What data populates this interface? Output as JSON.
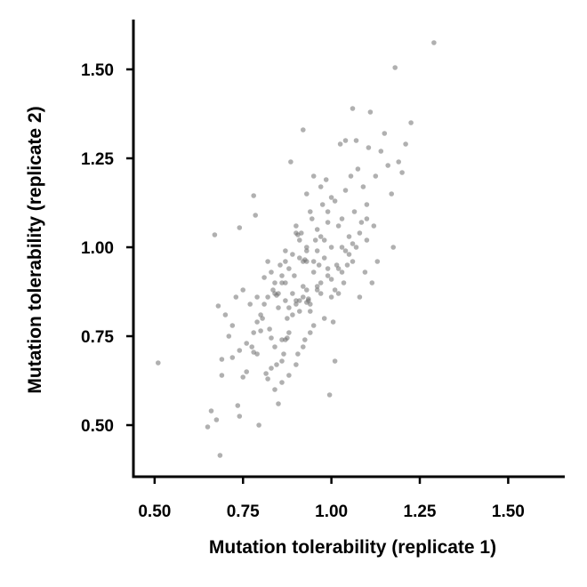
{
  "chart_data": {
    "type": "scatter",
    "title": "",
    "xlabel": "Mutation tolerability (replicate 1)",
    "ylabel": "Mutation tolerability (replicate 2)",
    "xlim": [
      0.44,
      1.66
    ],
    "ylim": [
      0.355,
      1.64
    ],
    "xticks": [
      0.5,
      0.75,
      1.0,
      1.25,
      1.5
    ],
    "xtick_labels": [
      "0.50",
      "0.75",
      "1.00",
      "1.25",
      "1.50"
    ],
    "yticks": [
      0.5,
      0.75,
      1.0,
      1.25,
      1.5
    ],
    "ytick_labels": [
      "0.50",
      "0.75",
      "1.00",
      "1.25",
      "1.50"
    ],
    "grid": false,
    "marker_color": "#6f6f6f",
    "points": [
      [
        0.51,
        0.675
      ],
      [
        0.65,
        0.495
      ],
      [
        0.66,
        0.54
      ],
      [
        0.675,
        0.515
      ],
      [
        0.67,
        1.035
      ],
      [
        0.68,
        0.835
      ],
      [
        0.685,
        0.415
      ],
      [
        0.69,
        0.64
      ],
      [
        0.69,
        0.685
      ],
      [
        0.7,
        0.81
      ],
      [
        0.71,
        0.75
      ],
      [
        0.72,
        0.78
      ],
      [
        0.73,
        0.86
      ],
      [
        0.735,
        0.555
      ],
      [
        0.74,
        0.525
      ],
      [
        0.74,
        1.055
      ],
      [
        0.75,
        0.635
      ],
      [
        0.75,
        0.88
      ],
      [
        0.76,
        0.65
      ],
      [
        0.77,
        0.84
      ],
      [
        0.775,
        0.72
      ],
      [
        0.78,
        1.145
      ],
      [
        0.78,
        0.705
      ],
      [
        0.785,
        1.09
      ],
      [
        0.79,
        0.7
      ],
      [
        0.795,
        0.5
      ],
      [
        0.79,
        0.86
      ],
      [
        0.8,
        0.765
      ],
      [
        0.805,
        0.8
      ],
      [
        0.81,
        0.915
      ],
      [
        0.815,
        0.645
      ],
      [
        0.82,
        0.86
      ],
      [
        0.82,
        0.63
      ],
      [
        0.825,
        0.77
      ],
      [
        0.83,
        0.745
      ],
      [
        0.835,
        0.88
      ],
      [
        0.84,
        0.9
      ],
      [
        0.84,
        0.72
      ],
      [
        0.845,
        0.67
      ],
      [
        0.85,
        0.56
      ],
      [
        0.85,
        0.83
      ],
      [
        0.855,
        0.95
      ],
      [
        0.86,
        0.74
      ],
      [
        0.86,
        0.68
      ],
      [
        0.865,
        0.7
      ],
      [
        0.87,
        0.9
      ],
      [
        0.87,
        0.99
      ],
      [
        0.875,
        0.8
      ],
      [
        0.88,
        0.76
      ],
      [
        0.88,
        0.94
      ],
      [
        0.885,
        1.24
      ],
      [
        0.89,
        0.87
      ],
      [
        0.895,
        0.92
      ],
      [
        0.9,
        1.06
      ],
      [
        0.9,
        0.85
      ],
      [
        0.905,
        0.7
      ],
      [
        0.91,
        0.97
      ],
      [
        0.91,
        0.82
      ],
      [
        0.915,
        1.04
      ],
      [
        0.92,
        0.89
      ],
      [
        0.92,
        1.33
      ],
      [
        0.925,
        0.74
      ],
      [
        0.93,
        0.96
      ],
      [
        0.93,
        0.99
      ],
      [
        0.935,
        0.85
      ],
      [
        0.94,
        1.1
      ],
      [
        0.94,
        0.82
      ],
      [
        0.945,
        1.08
      ],
      [
        0.95,
        0.93
      ],
      [
        0.95,
        0.78
      ],
      [
        0.955,
        1.02
      ],
      [
        0.96,
        0.89
      ],
      [
        0.96,
        1.05
      ],
      [
        0.965,
        0.95
      ],
      [
        0.97,
        1.03
      ],
      [
        0.97,
        0.87
      ],
      [
        0.975,
        1.12
      ],
      [
        0.98,
        0.97
      ],
      [
        0.98,
        0.8
      ],
      [
        0.985,
        1.19
      ],
      [
        0.99,
        0.94
      ],
      [
        0.99,
        1.07
      ],
      [
        0.995,
        0.585
      ],
      [
        1.0,
        0.91
      ],
      [
        1.0,
        1.0
      ],
      [
        1.005,
        0.79
      ],
      [
        1.01,
        1.13
      ],
      [
        1.01,
        0.68
      ],
      [
        1.015,
        0.95
      ],
      [
        1.02,
        1.06
      ],
      [
        1.02,
        0.87
      ],
      [
        1.025,
        1.29
      ],
      [
        1.03,
        1.0
      ],
      [
        1.03,
        1.08
      ],
      [
        1.035,
        0.9
      ],
      [
        1.04,
        1.3
      ],
      [
        1.04,
        1.16
      ],
      [
        1.045,
        0.95
      ],
      [
        1.05,
        1.03
      ],
      [
        1.055,
        1.2
      ],
      [
        1.06,
        1.39
      ],
      [
        1.06,
        0.96
      ],
      [
        1.065,
        1.1
      ],
      [
        1.07,
        1.0
      ],
      [
        1.07,
        1.3
      ],
      [
        1.075,
        1.22
      ],
      [
        1.08,
        0.86
      ],
      [
        1.085,
        1.07
      ],
      [
        1.09,
        1.17
      ],
      [
        1.095,
        0.93
      ],
      [
        1.1,
        1.12
      ],
      [
        1.1,
        1.02
      ],
      [
        1.105,
        1.28
      ],
      [
        1.11,
        1.38
      ],
      [
        1.115,
        0.9
      ],
      [
        1.12,
        1.06
      ],
      [
        1.125,
        1.2
      ],
      [
        1.13,
        0.96
      ],
      [
        1.14,
        1.27
      ],
      [
        1.15,
        1.32
      ],
      [
        1.16,
        1.23
      ],
      [
        1.17,
        1.15
      ],
      [
        1.175,
        1.0
      ],
      [
        1.18,
        1.505
      ],
      [
        1.19,
        1.24
      ],
      [
        1.2,
        1.21
      ],
      [
        1.21,
        1.29
      ],
      [
        1.225,
        1.35
      ],
      [
        1.29,
        1.575
      ],
      [
        0.87,
        0.85
      ],
      [
        0.9,
        0.84
      ],
      [
        0.91,
        0.85
      ],
      [
        0.92,
        0.86
      ],
      [
        0.93,
        0.88
      ],
      [
        0.94,
        0.84
      ],
      [
        0.85,
        0.87
      ],
      [
        0.86,
        0.9
      ],
      [
        0.88,
        0.83
      ],
      [
        0.89,
        0.81
      ],
      [
        0.96,
        0.88
      ],
      [
        0.97,
        0.9
      ],
      [
        0.95,
        0.96
      ],
      [
        0.96,
        0.99
      ],
      [
        0.93,
        1.0
      ],
      [
        0.91,
        1.02
      ],
      [
        0.89,
        0.98
      ],
      [
        0.87,
        0.96
      ],
      [
        0.86,
        0.92
      ],
      [
        0.83,
        0.93
      ],
      [
        0.82,
        0.96
      ],
      [
        0.81,
        0.84
      ],
      [
        0.8,
        0.81
      ],
      [
        0.79,
        0.79
      ],
      [
        0.78,
        0.76
      ],
      [
        0.76,
        0.73
      ],
      [
        0.74,
        0.71
      ],
      [
        0.72,
        0.69
      ],
      [
        1.0,
        0.86
      ],
      [
        1.01,
        0.88
      ],
      [
        1.03,
        0.93
      ],
      [
        1.05,
        0.98
      ],
      [
        1.06,
        1.01
      ],
      [
        0.98,
        1.02
      ],
      [
        0.99,
        1.1
      ],
      [
        1.0,
        1.14
      ],
      [
        0.97,
        1.17
      ],
      [
        0.95,
        1.2
      ],
      [
        0.93,
        1.15
      ],
      [
        0.94,
        0.76
      ],
      [
        0.92,
        0.72
      ],
      [
        0.9,
        0.67
      ],
      [
        0.88,
        0.64
      ],
      [
        0.86,
        0.62
      ],
      [
        0.84,
        0.6
      ],
      [
        0.83,
        0.66
      ],
      [
        0.84,
        0.87
      ],
      [
        0.845,
        0.865
      ],
      [
        0.92,
        0.96
      ],
      [
        0.925,
        0.965
      ],
      [
        0.93,
        0.845
      ],
      [
        0.935,
        0.855
      ],
      [
        0.9,
        1.04
      ],
      [
        0.905,
        1.035
      ],
      [
        0.87,
        0.74
      ],
      [
        0.875,
        0.745
      ],
      [
        0.99,
        0.92
      ],
      [
        1.02,
        0.94
      ],
      [
        1.04,
        0.99
      ],
      [
        1.08,
        1.04
      ],
      [
        1.1,
        1.08
      ]
    ]
  }
}
